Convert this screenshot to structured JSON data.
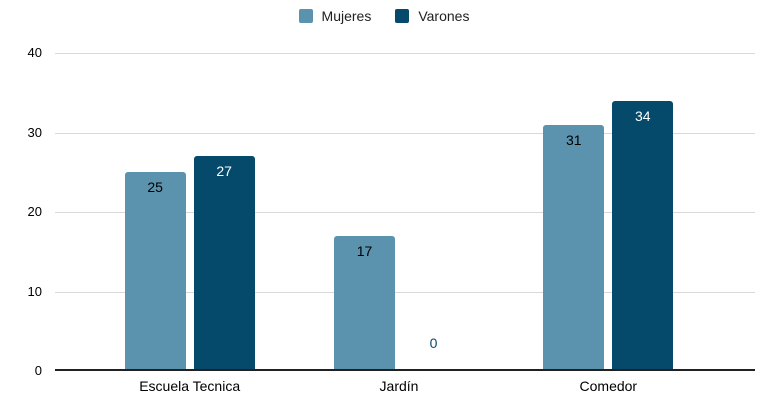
{
  "chart_data": {
    "type": "bar",
    "title": "",
    "categories": [
      "Escuela Tecnica",
      "Jardín",
      "Comedor"
    ],
    "series": [
      {
        "name": "Mujeres",
        "color": "#5B92AE",
        "label_color": "#000000",
        "values": [
          25,
          17,
          31
        ]
      },
      {
        "name": "Varones",
        "color": "#05496B",
        "label_color": "#FFFFFF",
        "values": [
          27,
          0,
          34
        ]
      }
    ],
    "ylim": [
      0,
      40
    ],
    "yticks": [
      0,
      10,
      20,
      30,
      40
    ],
    "grid": true,
    "legend_position": "top",
    "xlabel": "",
    "ylabel": "",
    "layout_colors": {
      "background": "#FFFFFF",
      "gridline": "#D9D9D9",
      "baseline": "#212121",
      "text": "#000000"
    }
  }
}
